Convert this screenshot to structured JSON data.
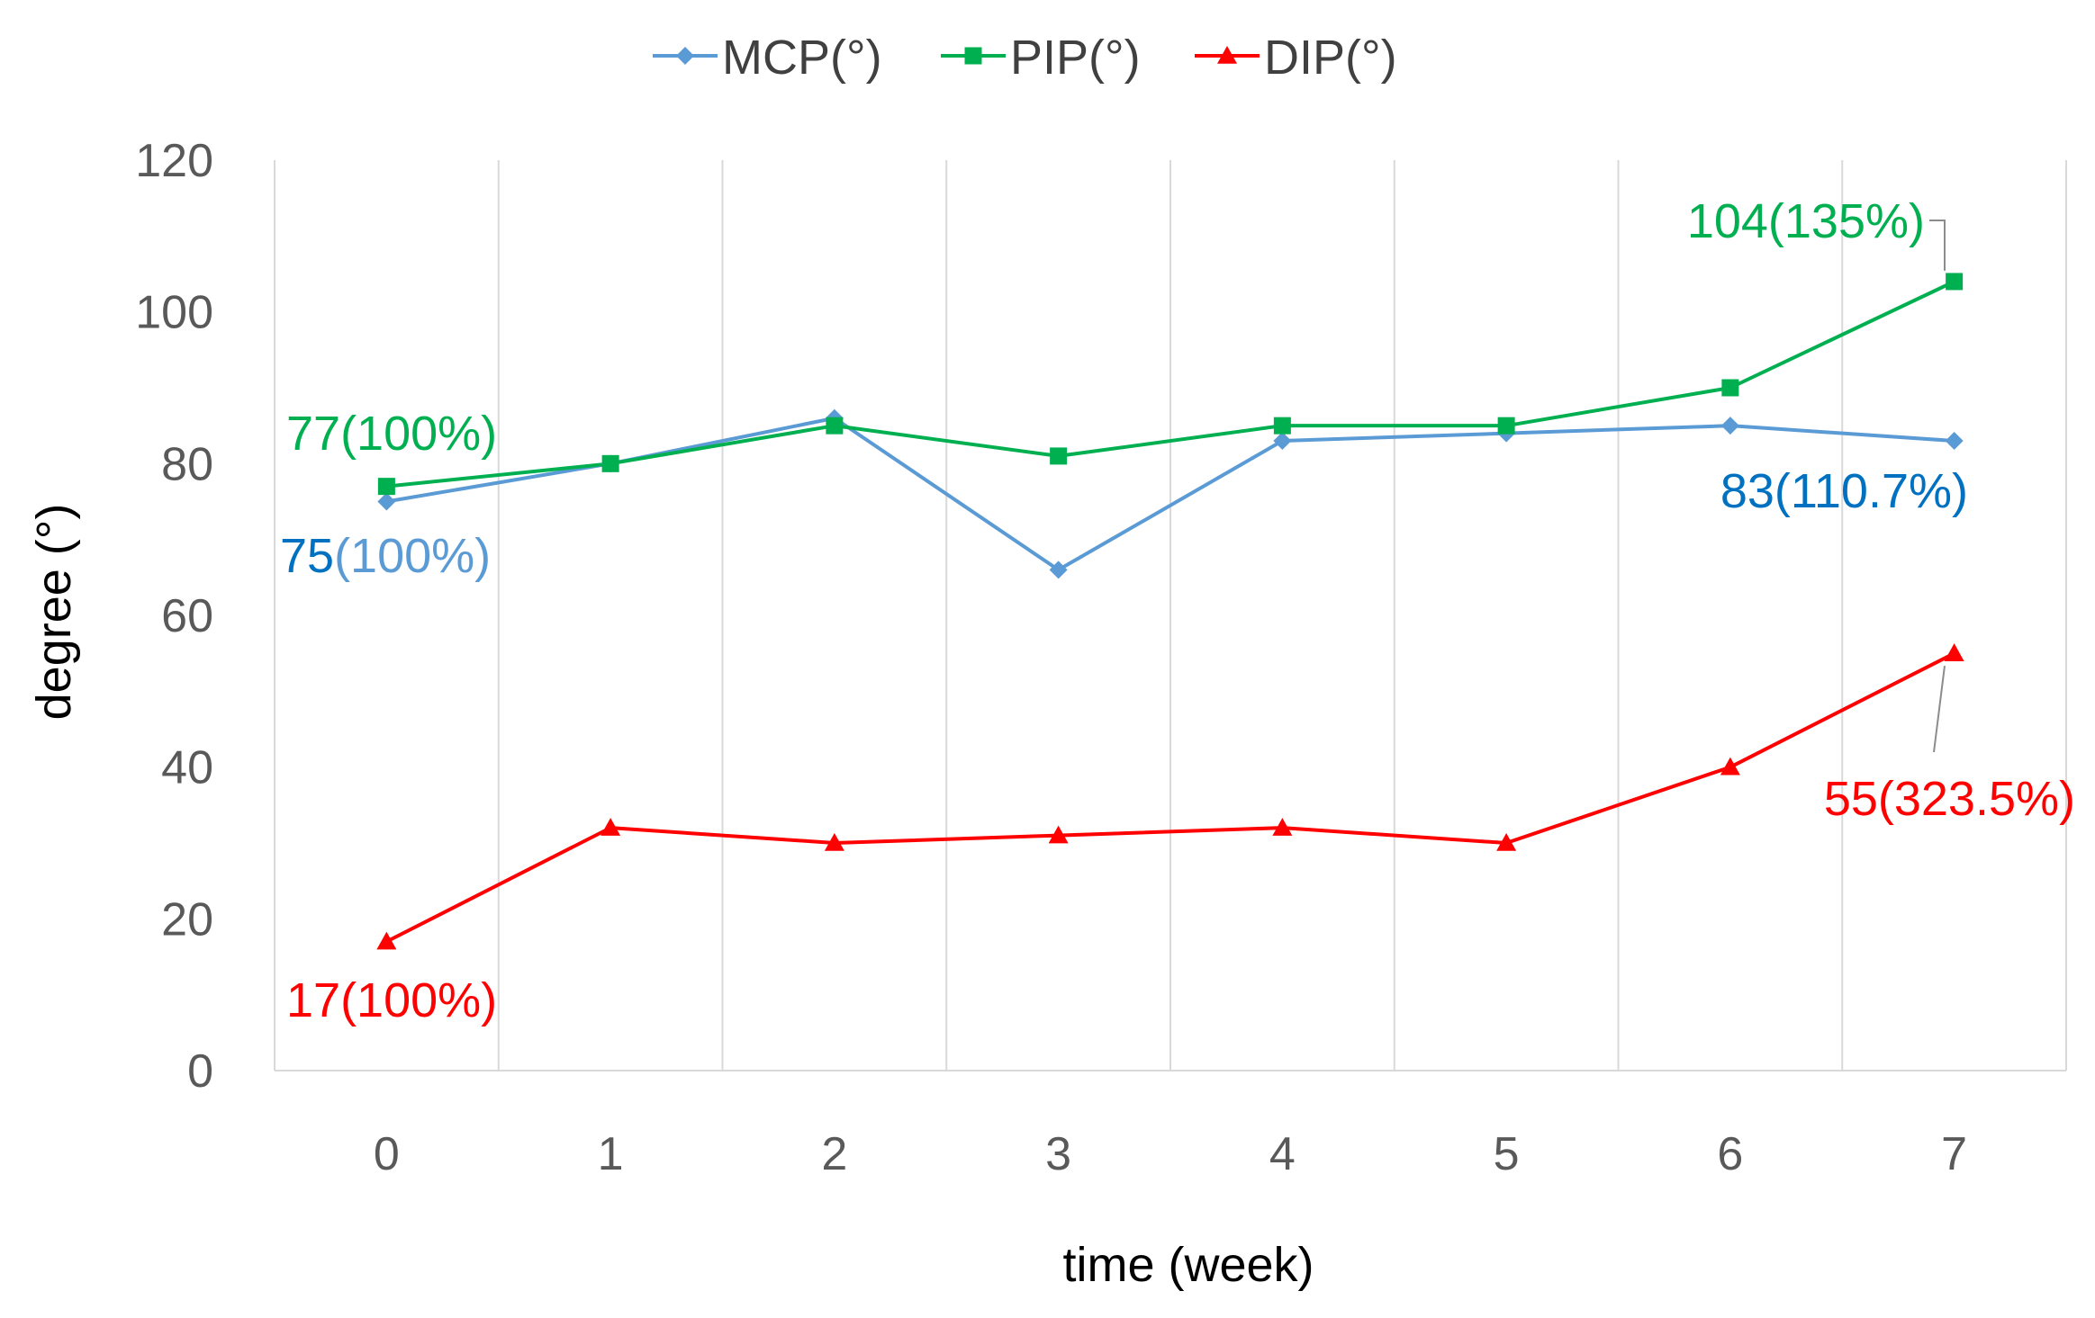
{
  "chart_data": {
    "type": "line",
    "title": "",
    "xlabel": "time (week)",
    "ylabel": "degree (°)",
    "x": [
      0,
      1,
      2,
      3,
      4,
      5,
      6,
      7
    ],
    "ylim": [
      0,
      120
    ],
    "yticks": [
      0,
      20,
      40,
      60,
      80,
      100,
      120
    ],
    "grid": "vertical",
    "legend_position": "top",
    "series": [
      {
        "name": "MCP(°)",
        "color": "#5b9bd5",
        "marker": "diamond",
        "values": [
          75,
          80,
          86,
          66,
          83,
          84,
          85,
          83
        ]
      },
      {
        "name": "PIP(°)",
        "color": "#00b050",
        "marker": "square",
        "values": [
          77,
          80,
          85,
          81,
          85,
          85,
          90,
          104
        ]
      },
      {
        "name": "DIP(°)",
        "color": "#ff0000",
        "marker": "triangle",
        "values": [
          17,
          32,
          30,
          31,
          32,
          30,
          40,
          55
        ]
      }
    ],
    "annotations": [
      {
        "series": "PIP(°)",
        "x": 0,
        "parts": [
          {
            "text": "77(100%)",
            "color": "#00b050"
          }
        ]
      },
      {
        "series": "MCP(°)",
        "x": 0,
        "parts": [
          {
            "text": "75",
            "color": "#0070c0"
          },
          {
            "text": "(100%)",
            "color": "#5b9bd5"
          }
        ]
      },
      {
        "series": "DIP(°)",
        "x": 0,
        "parts": [
          {
            "text": "17(100%)",
            "color": "#ff0000"
          }
        ]
      },
      {
        "series": "PIP(°)",
        "x": 7,
        "parts": [
          {
            "text": "104(135%)",
            "color": "#00b050"
          }
        ]
      },
      {
        "series": "MCP(°)",
        "x": 7,
        "parts": [
          {
            "text": "83(110.7%)",
            "color": "#0070c0"
          }
        ]
      },
      {
        "series": "DIP(°)",
        "x": 7,
        "parts": [
          {
            "text": "55(323.5%)",
            "color": "#ff0000"
          }
        ]
      }
    ]
  }
}
